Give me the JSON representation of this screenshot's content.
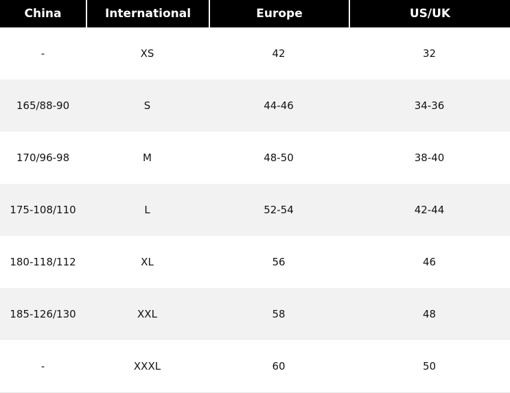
{
  "table": {
    "headers": [
      "China",
      "International",
      "Europe",
      "US/UK"
    ],
    "rows": [
      [
        "-",
        "XS",
        "42",
        "32"
      ],
      [
        "165/88-90",
        "S",
        "44-46",
        "34-36"
      ],
      [
        "170/96-98",
        "M",
        "48-50",
        "38-40"
      ],
      [
        "175-108/110",
        "L",
        "52-54",
        "42-44"
      ],
      [
        "180-118/112",
        "XL",
        "56",
        "46"
      ],
      [
        "185-126/130",
        "XXL",
        "58",
        "48"
      ],
      [
        "-",
        "XXXL",
        "60",
        "50"
      ]
    ]
  },
  "colors": {
    "header_bg": "#000000",
    "header_text": "#ffffff",
    "row_alt_bg": "#f2f2f2",
    "row_bg": "#ffffff"
  }
}
